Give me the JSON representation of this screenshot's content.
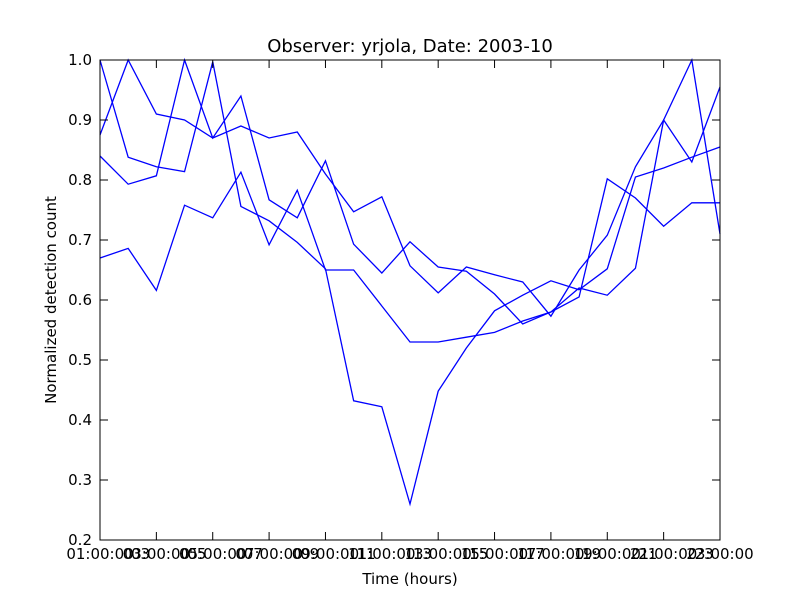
{
  "chart_data": {
    "type": "line",
    "title": "Observer: yrjola, Date: 2003-10",
    "xlabel": "Time (hours)",
    "ylabel": "Normalized detection count",
    "xlim": [
      0,
      22
    ],
    "ylim": [
      0.2,
      1.0
    ],
    "grid": false,
    "line_color": "#0000ff",
    "x_tick_labels": [
      "01:00:00",
      "03:00:00",
      "05:00:00",
      "07:00:00",
      "09:00:00",
      "11:00:00",
      "13:00:00",
      "15:00:00",
      "17:00:00",
      "19:00:00",
      "21:00:00",
      "23:00:00"
    ],
    "x_tick_labels_overlap": [
      "03",
      "05",
      "07",
      "09",
      "11",
      "13",
      "15",
      "17",
      "19",
      "21",
      "23",
      ""
    ],
    "y_ticks": [
      "0.2",
      "0.3",
      "0.4",
      "0.5",
      "0.6",
      "0.7",
      "0.8",
      "0.9",
      "1.0"
    ],
    "x_hours": [
      0,
      1,
      2,
      3,
      4,
      5,
      6,
      7,
      8,
      9,
      10,
      11,
      12,
      13,
      14,
      15,
      16,
      17,
      18,
      19,
      20,
      21,
      22
    ],
    "series": [
      {
        "values": [
          0.875,
          1.0,
          0.91,
          0.9,
          0.87,
          0.89,
          0.87,
          0.88,
          0.81,
          0.747,
          0.772,
          0.657,
          0.612,
          0.655,
          0.642,
          0.63,
          0.573,
          0.65,
          0.708,
          0.822,
          0.9,
          0.83,
          0.955
        ]
      },
      {
        "values": [
          0.84,
          0.793,
          0.807,
          1.0,
          0.87,
          0.94,
          0.767,
          0.737,
          0.832,
          0.693,
          0.645,
          0.697,
          0.655,
          0.648,
          0.61,
          0.56,
          0.58,
          0.62,
          0.608,
          0.653,
          0.9,
          1.0,
          0.71
        ]
      },
      {
        "values": [
          0.67,
          0.686,
          0.616,
          0.758,
          0.737,
          0.813,
          0.692,
          0.783,
          0.65,
          0.65,
          0.59,
          0.53,
          0.53,
          0.538,
          0.546,
          0.565,
          0.58,
          0.605,
          0.802,
          0.77,
          0.723,
          0.762,
          0.762
        ]
      },
      {
        "values": [
          1.0,
          0.838,
          0.822,
          0.814,
          0.997,
          0.756,
          0.732,
          0.696,
          0.652,
          0.432,
          0.422,
          0.26,
          0.448,
          0.52,
          0.582,
          0.608,
          0.632,
          0.617,
          0.652,
          0.805,
          0.82,
          0.838,
          0.855
        ]
      }
    ]
  }
}
